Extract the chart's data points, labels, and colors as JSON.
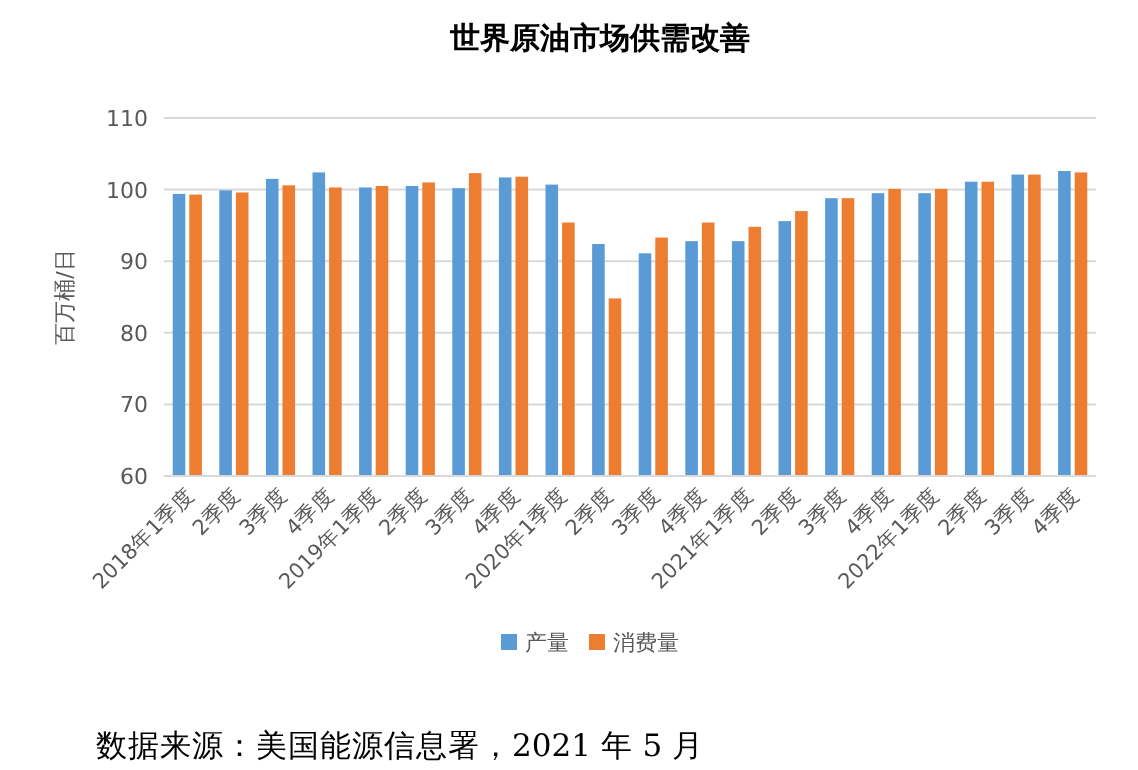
{
  "chart_data": {
    "type": "bar",
    "title": "世界原油市场供需改善",
    "ylabel": "百万桶/日",
    "categories": [
      "2018年1季度",
      "2季度",
      "3季度",
      "4季度",
      "2019年1季度",
      "2季度",
      "3季度",
      "4季度",
      "2020年1季度",
      "2季度",
      "3季度",
      "4季度",
      "2021年1季度",
      "2季度",
      "3季度",
      "4季度",
      "2022年1季度",
      "2季度",
      "3季度",
      "4季度"
    ],
    "series": [
      {
        "name": "产量",
        "color": "#5b9bd5",
        "values": [
          99.4,
          99.9,
          101.5,
          102.4,
          100.3,
          100.5,
          100.2,
          101.7,
          100.7,
          92.4,
          91.1,
          92.8,
          92.8,
          95.6,
          98.8,
          99.5,
          99.5,
          101.1,
          102.1,
          102.6
        ]
      },
      {
        "name": "消费量",
        "color": "#ed7d31",
        "values": [
          99.3,
          99.6,
          100.6,
          100.3,
          100.5,
          101.0,
          102.3,
          101.8,
          95.4,
          84.8,
          93.3,
          95.4,
          94.8,
          97.0,
          98.8,
          100.1,
          100.1,
          101.1,
          102.1,
          102.4
        ]
      }
    ],
    "ylim": [
      60,
      110
    ],
    "yticks": [
      60,
      70,
      80,
      90,
      100,
      110
    ],
    "grid": "y",
    "legend": "bottom",
    "annotations": [
      "数据来源：美国能源信息署，2021 年 5 月"
    ]
  }
}
